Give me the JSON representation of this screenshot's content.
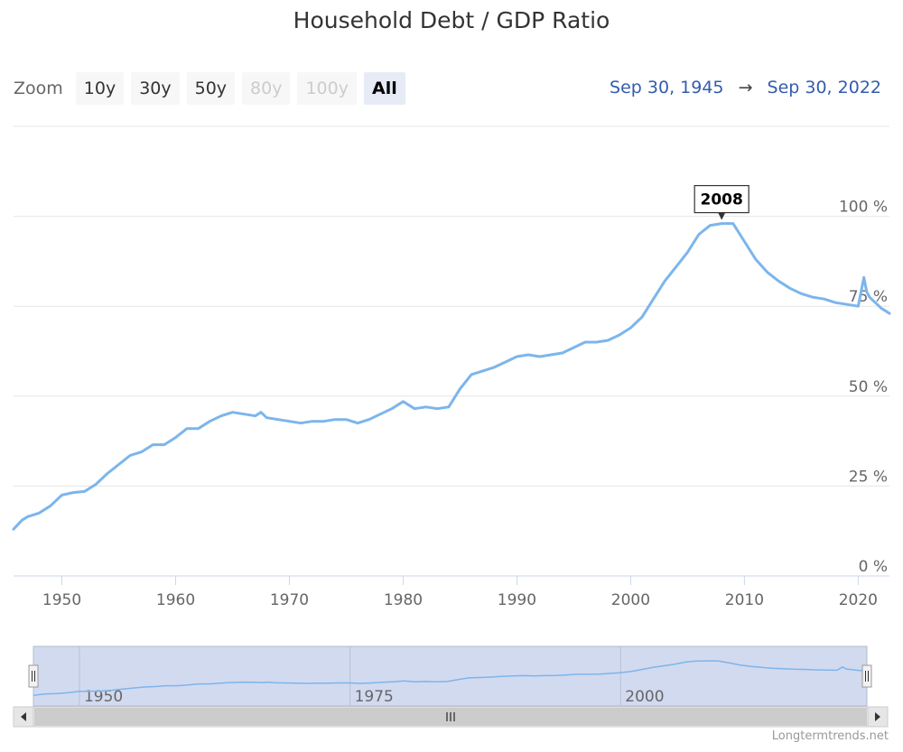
{
  "title": "Household Debt / GDP Ratio",
  "zoom": {
    "label": "Zoom",
    "buttons": [
      {
        "label": "10y",
        "state": "normal"
      },
      {
        "label": "30y",
        "state": "normal"
      },
      {
        "label": "50y",
        "state": "normal"
      },
      {
        "label": "80y",
        "state": "disabled"
      },
      {
        "label": "100y",
        "state": "disabled"
      },
      {
        "label": "All",
        "state": "active"
      }
    ]
  },
  "range": {
    "from": "Sep 30, 1945",
    "arrow": "→",
    "to": "Sep 30, 2022"
  },
  "credit": "Longtermtrends.net",
  "colors": {
    "line": "#7cb5ec",
    "navigator_mask": "#d2daf0",
    "range_text": "#335cad"
  },
  "chart_data": {
    "type": "line",
    "title": "Household Debt / GDP Ratio",
    "xlabel": "",
    "ylabel": "",
    "xlim": [
      1945.75,
      2022.75
    ],
    "ylim": [
      0,
      125
    ],
    "y_unit": "%",
    "x_ticks": [
      1950,
      1960,
      1970,
      1980,
      1990,
      2000,
      2010,
      2020
    ],
    "x_tick_labels": [
      "1950",
      "1960",
      "1970",
      "1980",
      "1990",
      "2000",
      "2010",
      "2020"
    ],
    "y_ticks": [
      0,
      25,
      50,
      75,
      100
    ],
    "y_tick_labels": [
      "0 %",
      "25 %",
      "50 %",
      "75 %",
      "100 %"
    ],
    "grid": "horizontal",
    "annotation": {
      "label": "2008",
      "x": 2008.0,
      "y": 98.5
    },
    "navigator": {
      "x_ticks": [
        1950,
        1975,
        2000
      ],
      "x_tick_labels": [
        "1950",
        "1975",
        "2000"
      ]
    },
    "series": [
      {
        "x": [
          1945.75,
          1946.5,
          1947,
          1948,
          1949,
          1950,
          1951,
          1952,
          1953,
          1954,
          1955,
          1956,
          1957,
          1958,
          1959,
          1960,
          1961,
          1962,
          1963,
          1964,
          1965,
          1966,
          1967,
          1967.5,
          1968,
          1969,
          1970,
          1971,
          1972,
          1973,
          1974,
          1975,
          1976,
          1977,
          1978,
          1979,
          1980,
          1981,
          1982,
          1983,
          1984,
          1985,
          1986,
          1987,
          1988,
          1989,
          1990,
          1991,
          1992,
          1993,
          1994,
          1995,
          1996,
          1997,
          1998,
          1999,
          2000,
          2001,
          2002,
          2003,
          2004,
          2005,
          2006,
          2007,
          2008,
          2009,
          2010,
          2011,
          2012,
          2013,
          2014,
          2015,
          2016,
          2017,
          2018,
          2019,
          2020,
          2020.5,
          2020.75,
          2021,
          2021.5,
          2022,
          2022.75
        ],
        "y": [
          13,
          15.5,
          16.5,
          17.5,
          19.5,
          22.5,
          23.2,
          23.5,
          25.5,
          28.5,
          31,
          33.5,
          34.5,
          36.5,
          36.5,
          38.5,
          41,
          41,
          43,
          44.5,
          45.5,
          45,
          44.5,
          45.5,
          44,
          43.5,
          43,
          42.5,
          43,
          43,
          43.5,
          43.5,
          42.5,
          43.5,
          45,
          46.5,
          48.5,
          46.5,
          47,
          46.5,
          47,
          52,
          56,
          57,
          58,
          59.5,
          61,
          61.5,
          61,
          61.5,
          62,
          63.5,
          65,
          65,
          65.5,
          67,
          69,
          72,
          77,
          82,
          86,
          90,
          95,
          97.5,
          98,
          98,
          93,
          88,
          84.5,
          82,
          80,
          78.5,
          77.5,
          77,
          76,
          75.5,
          75,
          83,
          79,
          77.5,
          76,
          74.5,
          73
        ]
      }
    ]
  }
}
